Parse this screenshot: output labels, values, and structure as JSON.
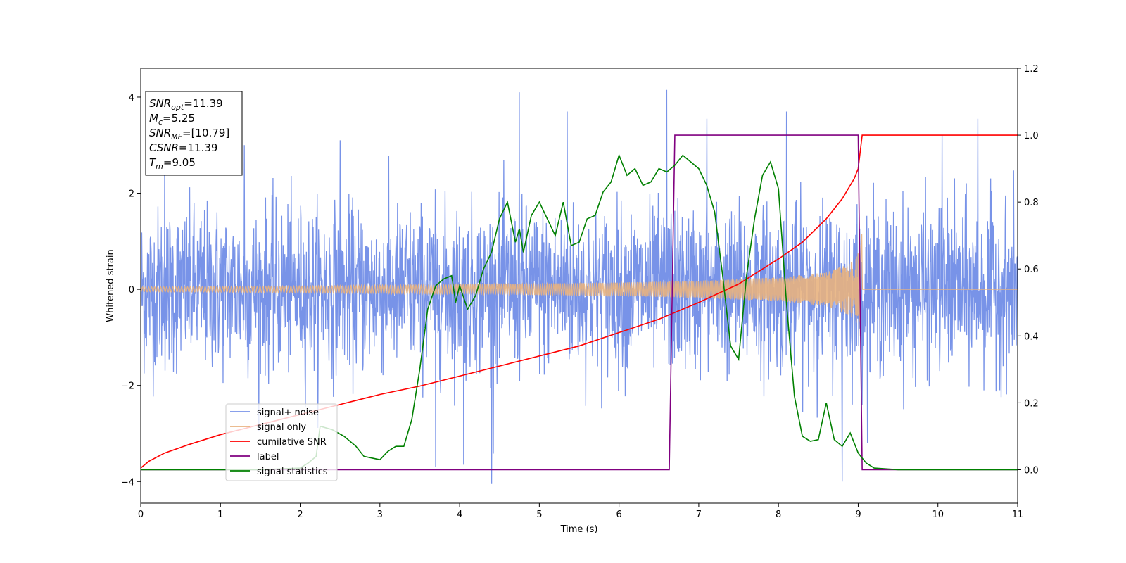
{
  "chart_data": {
    "type": "line",
    "title": "",
    "xlabel": "Time (s)",
    "ylabel": "Whitened strain",
    "y2label": "",
    "xlim": [
      0,
      11
    ],
    "ylim": [
      -4.45,
      4.6
    ],
    "y2lim": [
      -0.1,
      1.2
    ],
    "x_ticks": [
      0,
      1,
      2,
      3,
      4,
      5,
      6,
      7,
      8,
      9,
      10,
      11
    ],
    "y_ticks": [
      -4,
      -2,
      0,
      2,
      4
    ],
    "y2_ticks": [
      0.0,
      0.2,
      0.4,
      0.6,
      0.8,
      1.0,
      1.2
    ],
    "y_tick_labels": [
      "−4",
      "−2",
      "0",
      "2",
      "4"
    ],
    "y2_tick_labels": [
      "0.0",
      "0.2",
      "0.4",
      "0.6",
      "0.8",
      "1.0",
      "1.2"
    ],
    "x_tick_labels": [
      "0",
      "1",
      "2",
      "3",
      "4",
      "5",
      "6",
      "7",
      "8",
      "9",
      "10",
      "11"
    ],
    "grid": false,
    "legend_position": "lower-left",
    "info_box": {
      "lines": [
        {
          "main": "SNR",
          "sub": "opt",
          "rest": "=11.39"
        },
        {
          "main": "M",
          "sub": "c",
          "rest": "=5.25"
        },
        {
          "main": "SNR",
          "sub": "MF",
          "rest": "=[10.79]"
        },
        {
          "main": "CSNR",
          "sub": "",
          "rest": "=11.39"
        },
        {
          "main": "T",
          "sub": "m",
          "rest": "=9.05"
        }
      ]
    },
    "series": [
      {
        "name": "signal+ noise",
        "color": "#7893e8",
        "axis": "left",
        "description_kind": "noise",
        "noise_std": 0.85,
        "spikes": [
          [
            1.3,
            3.0
          ],
          [
            2.5,
            3.1
          ],
          [
            3.7,
            -3.7
          ],
          [
            4.05,
            -3.65
          ],
          [
            4.4,
            -4.05
          ],
          [
            4.75,
            4.1
          ],
          [
            5.35,
            3.7
          ],
          [
            6.6,
            4.15
          ],
          [
            7.1,
            3.55
          ],
          [
            8.8,
            -4.0
          ],
          [
            10.5,
            3.55
          ],
          [
            10.05,
            3.2
          ],
          [
            0.3,
            3.2
          ],
          [
            8.1,
            3.7
          ]
        ],
        "x_range": [
          0,
          11
        ]
      },
      {
        "name": "signal only",
        "color": "#e8b380",
        "axis": "left",
        "description_kind": "chirp",
        "envelope": [
          [
            0,
            0.05
          ],
          [
            2,
            0.07
          ],
          [
            4,
            0.1
          ],
          [
            6,
            0.14
          ],
          [
            7,
            0.18
          ],
          [
            8,
            0.25
          ],
          [
            8.6,
            0.35
          ],
          [
            8.9,
            0.55
          ],
          [
            9.0,
            0.75
          ],
          [
            9.05,
            1.25
          ],
          [
            9.06,
            0.0
          ],
          [
            11,
            0.0
          ]
        ]
      },
      {
        "name": "cumilative SNR",
        "color": "#ff0000",
        "axis": "right",
        "x": [
          0,
          0.1,
          0.3,
          0.6,
          1.0,
          1.5,
          2.0,
          2.5,
          3.0,
          3.5,
          4.0,
          4.5,
          5.0,
          5.5,
          6.0,
          6.5,
          7.0,
          7.5,
          8.0,
          8.3,
          8.6,
          8.8,
          8.95,
          9.0,
          9.05,
          11
        ],
        "y": [
          0.005,
          0.025,
          0.05,
          0.075,
          0.105,
          0.135,
          0.165,
          0.195,
          0.225,
          0.25,
          0.28,
          0.31,
          0.34,
          0.37,
          0.41,
          0.45,
          0.5,
          0.555,
          0.63,
          0.68,
          0.75,
          0.81,
          0.87,
          0.9,
          1.0,
          1.0
        ]
      },
      {
        "name": "label",
        "color": "#800080",
        "axis": "right",
        "x": [
          0,
          6.63,
          6.7,
          9.0,
          9.05,
          11
        ],
        "y": [
          0.0,
          0.0,
          1.0,
          1.0,
          0.0,
          0.0
        ]
      },
      {
        "name": "signal statistics",
        "color": "#008000",
        "axis": "right",
        "x": [
          0,
          1.0,
          1.5,
          2.0,
          2.1,
          2.2,
          2.25,
          2.4,
          2.55,
          2.7,
          2.8,
          2.9,
          3.0,
          3.1,
          3.2,
          3.3,
          3.4,
          3.5,
          3.6,
          3.7,
          3.8,
          3.9,
          3.95,
          4.0,
          4.1,
          4.2,
          4.3,
          4.4,
          4.5,
          4.6,
          4.7,
          4.75,
          4.8,
          4.9,
          5.0,
          5.1,
          5.2,
          5.3,
          5.4,
          5.5,
          5.6,
          5.7,
          5.8,
          5.9,
          6.0,
          6.1,
          6.2,
          6.3,
          6.4,
          6.5,
          6.6,
          6.7,
          6.8,
          6.9,
          7.0,
          7.1,
          7.2,
          7.3,
          7.4,
          7.5,
          7.6,
          7.7,
          7.8,
          7.9,
          8.0,
          8.1,
          8.2,
          8.3,
          8.4,
          8.5,
          8.6,
          8.7,
          8.8,
          8.9,
          9.0,
          9.1,
          9.2,
          9.5,
          11
        ],
        "y": [
          0.0,
          0.0,
          0.0,
          0.005,
          0.02,
          0.04,
          0.13,
          0.12,
          0.1,
          0.07,
          0.04,
          0.035,
          0.03,
          0.055,
          0.07,
          0.07,
          0.15,
          0.3,
          0.48,
          0.55,
          0.57,
          0.58,
          0.5,
          0.55,
          0.48,
          0.52,
          0.6,
          0.65,
          0.75,
          0.8,
          0.68,
          0.72,
          0.65,
          0.76,
          0.8,
          0.75,
          0.7,
          0.8,
          0.67,
          0.68,
          0.75,
          0.76,
          0.83,
          0.86,
          0.94,
          0.88,
          0.9,
          0.85,
          0.86,
          0.9,
          0.89,
          0.91,
          0.94,
          0.92,
          0.9,
          0.85,
          0.77,
          0.58,
          0.37,
          0.33,
          0.58,
          0.75,
          0.88,
          0.92,
          0.84,
          0.5,
          0.22,
          0.1,
          0.085,
          0.09,
          0.2,
          0.09,
          0.07,
          0.11,
          0.05,
          0.02,
          0.005,
          0.0,
          0.0
        ]
      }
    ]
  }
}
